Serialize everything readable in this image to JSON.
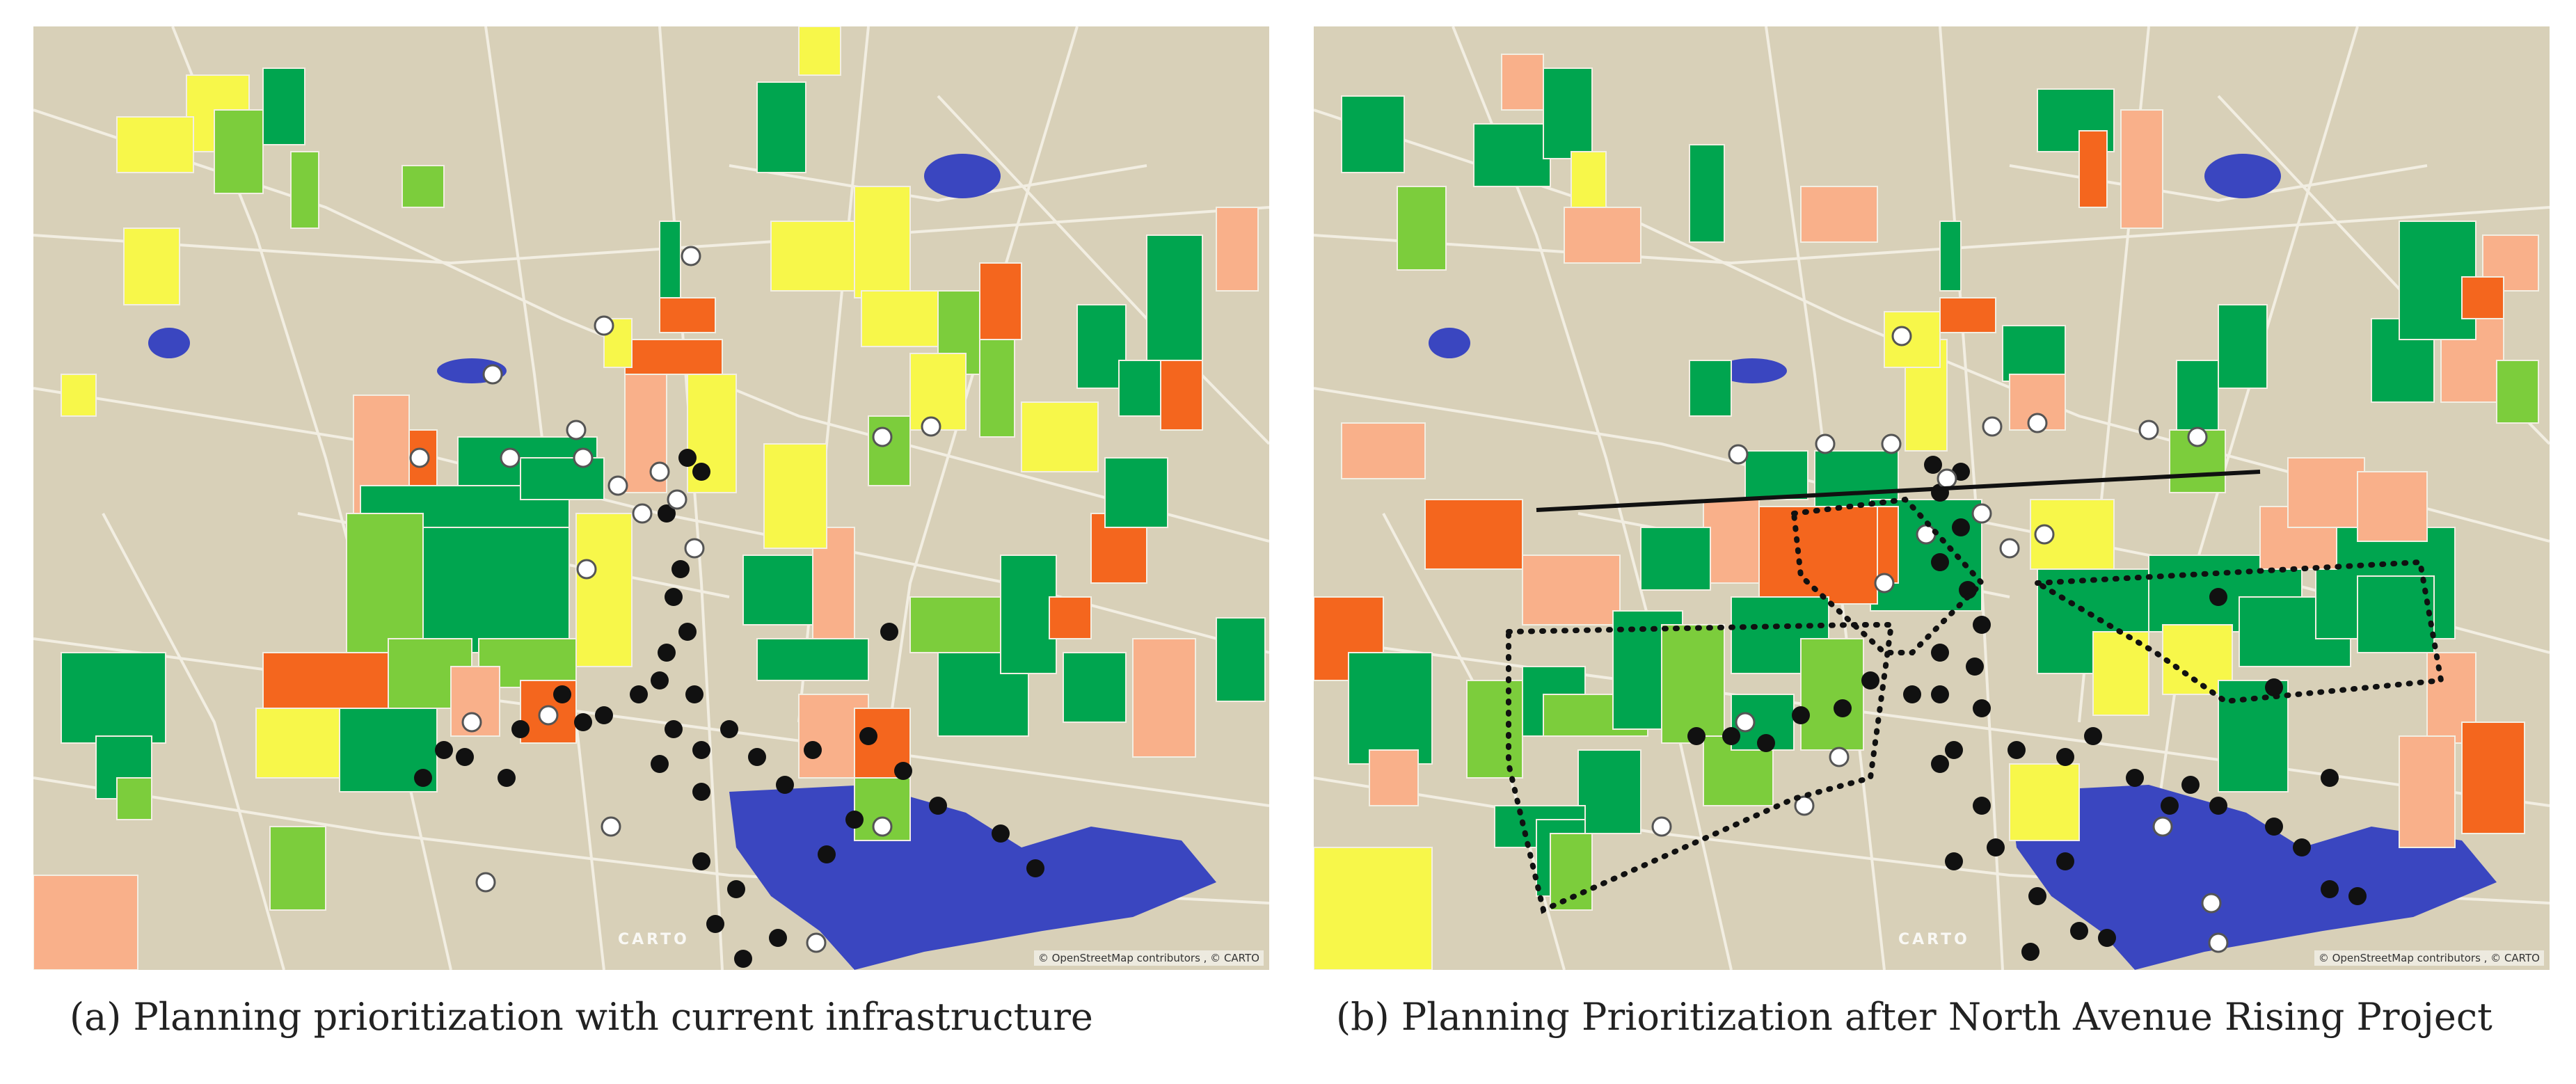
{
  "panels": [
    {
      "id": "a",
      "caption": "(a) Planning prioritization with current infrastructure",
      "basemap_brand": "CARTO",
      "attribution": "© OpenStreetMap contributors , © CARTO"
    },
    {
      "id": "b",
      "caption": "(b) Planning Prioritization after North Avenue Rising Project",
      "basemap_brand": "CARTO",
      "attribution": "© OpenStreetMap contributors , © CARTO"
    }
  ],
  "colors": {
    "land": "#d8d0b8",
    "roads": "#f2eee2",
    "water": "#3a46c0",
    "priority_1": "#00a54f",
    "priority_2": "#7ccd3c",
    "priority_3": "#f7f74a",
    "priority_4": "#f9b08a",
    "priority_5": "#f4661e",
    "station_filled": "#111111",
    "station_open": "#ffffff",
    "project_outline": "#111111"
  }
}
